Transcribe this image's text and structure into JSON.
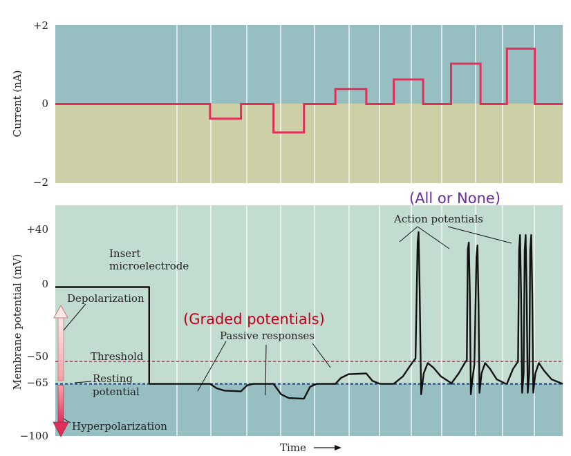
{
  "chart_data": [
    {
      "type": "line",
      "ylabel": "Current (nA)",
      "ylim": [
        -2,
        2
      ],
      "yticks": [
        "+2",
        "0",
        "−2"
      ],
      "colors": {
        "upper_bg": "#97bfc2",
        "lower_bg": "#cdcfa6",
        "trace": "#e0305a",
        "grid": "#ffffff"
      },
      "series": [
        {
          "points": [
            [
              0,
              0
            ],
            [
              0.305,
              0
            ],
            [
              0.305,
              -0.37
            ],
            [
              0.366,
              -0.37
            ],
            [
              0.366,
              0
            ],
            [
              0.43,
              0
            ],
            [
              0.43,
              -0.72
            ],
            [
              0.49,
              -0.72
            ],
            [
              0.49,
              0
            ],
            [
              0.552,
              0
            ],
            [
              0.552,
              0.38
            ],
            [
              0.613,
              0.38
            ],
            [
              0.613,
              0
            ],
            [
              0.667,
              0
            ],
            [
              0.667,
              0.62
            ],
            [
              0.725,
              0.62
            ],
            [
              0.725,
              0
            ],
            [
              0.78,
              0
            ],
            [
              0.78,
              1.02
            ],
            [
              0.838,
              1.02
            ],
            [
              0.838,
              0
            ],
            [
              0.89,
              0
            ],
            [
              0.89,
              1.4
            ],
            [
              0.945,
              1.4
            ],
            [
              0.945,
              0
            ],
            [
              1,
              0
            ]
          ]
        }
      ]
    },
    {
      "type": "line",
      "xlabel": "Time",
      "ylabel": "Membrane potential (mV)",
      "ylim": [
        -100,
        55
      ],
      "yticks": [
        "+40",
        "0",
        "−50",
        "−65",
        "−100"
      ],
      "threshold_mV": -50,
      "resting_mV": -65,
      "colors": {
        "upper_bg": "#c2dcd0",
        "lower_bg": "#97bfc2",
        "trace": "#111111",
        "threshold_line": "#e0305a",
        "resting_line": "#1a3f86"
      },
      "annotations": {
        "insert": [
          "Insert",
          "microelectrode"
        ],
        "depolarization": "Depolarization",
        "threshold": "Threshold",
        "resting": [
          "Resting",
          "potential"
        ],
        "hyperpolarization": "Hyperpolarization",
        "passive": "Passive responses",
        "action": "Action potentials",
        "graded": "(Graded potentials)",
        "all_or_none": "(All or None)"
      },
      "colors_text": {
        "graded": "#c0001a",
        "all_or_none": "#6a2aa0"
      },
      "series": [
        {
          "points": [
            [
              0,
              0
            ],
            [
              0.185,
              0
            ],
            [
              0.185,
              -65
            ],
            [
              0.305,
              -65
            ],
            [
              0.318,
              -68
            ],
            [
              0.333,
              -69.5
            ],
            [
              0.366,
              -70
            ],
            [
              0.366,
              -70
            ],
            [
              0.378,
              -66
            ],
            [
              0.39,
              -65
            ],
            [
              0.43,
              -65
            ],
            [
              0.445,
              -72
            ],
            [
              0.46,
              -74.5
            ],
            [
              0.49,
              -75
            ],
            [
              0.49,
              -75
            ],
            [
              0.502,
              -67
            ],
            [
              0.515,
              -65
            ],
            [
              0.552,
              -65
            ],
            [
              0.563,
              -61
            ],
            [
              0.578,
              -58.5
            ],
            [
              0.613,
              -58
            ],
            [
              0.613,
              -58
            ],
            [
              0.625,
              -63
            ],
            [
              0.64,
              -65
            ],
            [
              0.667,
              -65
            ],
            [
              0.685,
              -60
            ],
            [
              0.703,
              -51
            ],
            [
              0.71,
              -48
            ],
            [
              0.714,
              30
            ],
            [
              0.716,
              37
            ],
            [
              0.718,
              0
            ],
            [
              0.721,
              -72
            ],
            [
              0.726,
              -58
            ],
            [
              0.734,
              -51
            ],
            [
              0.745,
              -54
            ],
            [
              0.76,
              -60
            ],
            [
              0.778,
              -64
            ],
            [
              0.78,
              -65
            ],
            [
              0.795,
              -58
            ],
            [
              0.807,
              -51
            ],
            [
              0.811,
              -49
            ],
            [
              0.813,
              25
            ],
            [
              0.815,
              30
            ],
            [
              0.817,
              -5
            ],
            [
              0.819,
              -72
            ],
            [
              0.822,
              -62
            ],
            [
              0.826,
              -52
            ],
            [
              0.83,
              20
            ],
            [
              0.832,
              28
            ],
            [
              0.834,
              -10
            ],
            [
              0.836,
              -71
            ],
            [
              0.84,
              -58
            ],
            [
              0.847,
              -51
            ],
            [
              0.857,
              -55
            ],
            [
              0.87,
              -62
            ],
            [
              0.888,
              -65
            ],
            [
              0.89,
              -65
            ],
            [
              0.902,
              -55
            ],
            [
              0.912,
              -50
            ],
            [
              0.914,
              25
            ],
            [
              0.916,
              35
            ],
            [
              0.918,
              -5
            ],
            [
              0.92,
              -71
            ],
            [
              0.923,
              -58
            ],
            [
              0.925,
              25
            ],
            [
              0.927,
              35
            ],
            [
              0.929,
              -5
            ],
            [
              0.931,
              -71
            ],
            [
              0.934,
              -58
            ],
            [
              0.936,
              25
            ],
            [
              0.938,
              35
            ],
            [
              0.94,
              -5
            ],
            [
              0.942,
              -71
            ],
            [
              0.946,
              -58
            ],
            [
              0.953,
              -51
            ],
            [
              0.963,
              -56
            ],
            [
              0.978,
              -62
            ],
            [
              1,
              -65
            ]
          ]
        }
      ]
    }
  ]
}
